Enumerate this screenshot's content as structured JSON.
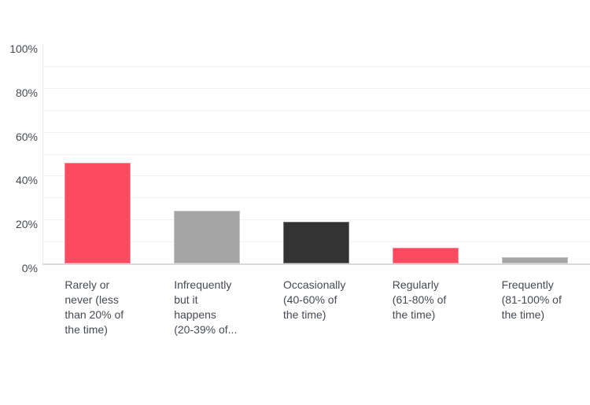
{
  "chart_data": {
    "type": "bar",
    "title": "",
    "xlabel": "",
    "ylabel": "",
    "unit": "%",
    "categories": [
      "Rarely or never (less than 20% of the time)",
      "Infrequently but it happens (20-39% of...",
      "Occasionally (40-60% of the time)",
      "Regularly (61-80% of the time)",
      "Frequently (81-100% of the time)"
    ],
    "category_display_lines": [
      [
        "Rarely or",
        "never (less",
        "than 20% of",
        "the time)"
      ],
      [
        "Infrequently",
        "but it",
        "happens",
        "(20-39% of..."
      ],
      [
        "Occasionally",
        "(40-60% of",
        "the time)"
      ],
      [
        "Regularly",
        "(61-80% of",
        "the time)"
      ],
      [
        "Frequently",
        "(81-100% of",
        "the time)"
      ]
    ],
    "values": [
      46,
      24,
      19,
      7,
      3
    ],
    "bar_colors": [
      "#FC4B61",
      "#A5A5A5",
      "#333333",
      "#FC4B61",
      "#A5A5A5"
    ],
    "y_ticks": [
      "0%",
      "20%",
      "40%",
      "60%",
      "80%",
      "100%"
    ],
    "y_tick_values": [
      0,
      20,
      40,
      60,
      80,
      100
    ],
    "ylim": [
      0,
      100
    ],
    "grid": true,
    "grid_step": 10,
    "legend": "none",
    "colors": {
      "background": "#FFFFFF",
      "gridline": "#F2F2F2",
      "y_axis_line": "#E8E8E8",
      "x_axis_line": "#D9D9D9",
      "tick_text": "#464B53"
    }
  }
}
